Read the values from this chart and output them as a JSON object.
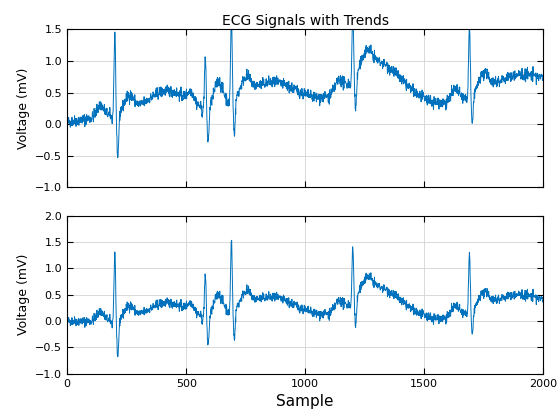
{
  "title": "ECG Signals with Trends",
  "xlabel": "Sample",
  "ylabel": "Voltage (mV)",
  "line_color": "#0072BD",
  "line_width": 0.7,
  "n_samples": 2000,
  "ylim1": [
    -1,
    1.5
  ],
  "ylim2": [
    -1,
    2
  ],
  "xlim": [
    0,
    2000
  ],
  "yticks1": [
    -1,
    -0.5,
    0,
    0.5,
    1,
    1.5
  ],
  "yticks2": [
    -1,
    -0.5,
    0,
    0.5,
    1,
    1.5,
    2
  ],
  "xticks": [
    0,
    500,
    1000,
    1500,
    2000
  ],
  "seed": 42,
  "background_color": "#FFFFFF",
  "grid_color": "#D3D3D3",
  "title_fontsize": 10,
  "label_fontsize": 9,
  "tick_fontsize": 8,
  "beat_centers": [
    200,
    580,
    690,
    1200,
    1690
  ],
  "beat_amplitudes_r": [
    1.3,
    0.8,
    1.35,
    1.0,
    1.1
  ],
  "beat_s_depths": [
    0.75,
    0.55,
    0.55,
    0.55,
    0.5
  ]
}
